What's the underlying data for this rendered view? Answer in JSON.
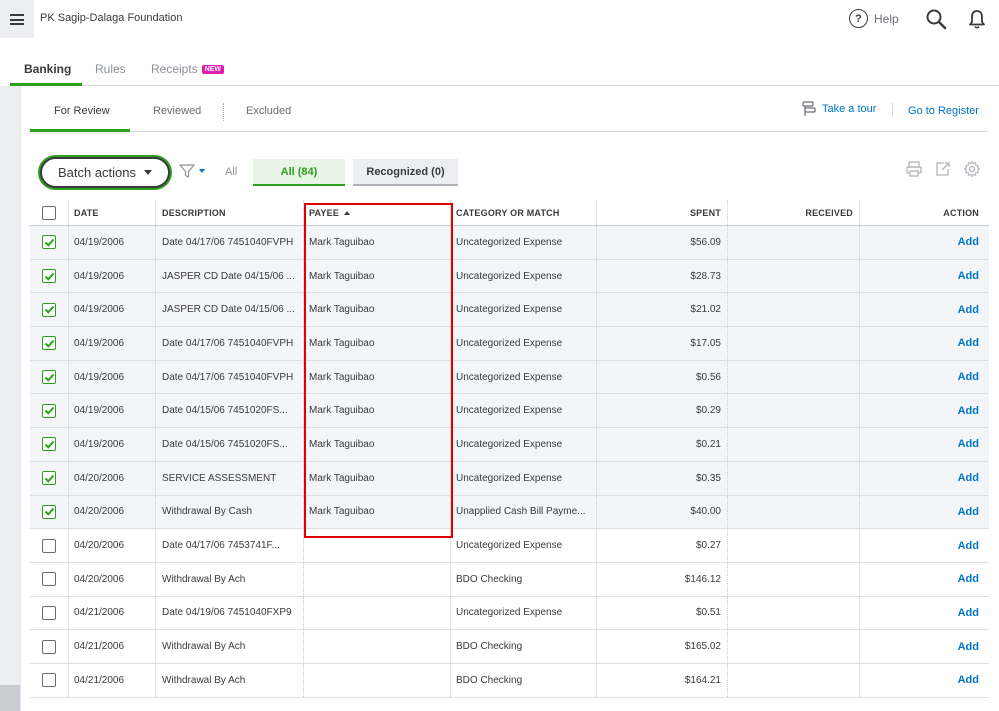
{
  "header": {
    "company": "PK Sagip-Dalaga Foundation",
    "help_label": "Help"
  },
  "main_tabs": [
    {
      "label": "Banking",
      "active": true
    },
    {
      "label": "Rules",
      "active": false
    },
    {
      "label": "Receipts",
      "active": false,
      "badge": "NEW"
    }
  ],
  "sub_tabs": [
    {
      "label": "For Review",
      "active": true
    },
    {
      "label": "Reviewed",
      "active": false
    },
    {
      "label": "Excluded",
      "active": false
    }
  ],
  "links": {
    "tour": "Take a tour",
    "register": "Go to Register"
  },
  "toolbar": {
    "batch_actions": "Batch actions",
    "filter_label": "All",
    "all_pill": "All (84)",
    "recognized_pill": "Recognized (0)"
  },
  "table": {
    "columns": {
      "date": "DATE",
      "description": "DESCRIPTION",
      "payee": "PAYEE",
      "category": "CATEGORY OR MATCH",
      "spent": "SPENT",
      "received": "RECEIVED",
      "action": "ACTION"
    },
    "action_label": "Add",
    "rows": [
      {
        "checked": true,
        "date": "04/19/2006",
        "description": "Date 04/17/06 7451040FVPH",
        "payee": "Mark Taguibao",
        "category": "Uncategorized Expense",
        "spent": "$56.09",
        "received": ""
      },
      {
        "checked": true,
        "date": "04/19/2006",
        "description": "JASPER CD Date 04/15/06 ...",
        "payee": "Mark Taguibao",
        "category": "Uncategorized Expense",
        "spent": "$28.73",
        "received": ""
      },
      {
        "checked": true,
        "date": "04/19/2006",
        "description": "JASPER CD Date 04/15/06 ...",
        "payee": "Mark Taguibao",
        "category": "Uncategorized Expense",
        "spent": "$21.02",
        "received": ""
      },
      {
        "checked": true,
        "date": "04/19/2006",
        "description": "Date 04/17/06 7451040FVPH",
        "payee": "Mark Taguibao",
        "category": "Uncategorized Expense",
        "spent": "$17.05",
        "received": ""
      },
      {
        "checked": true,
        "date": "04/19/2006",
        "description": "Date 04/17/06 7451040FVPH",
        "payee": "Mark Taguibao",
        "category": "Uncategorized Expense",
        "spent": "$0.56",
        "received": ""
      },
      {
        "checked": true,
        "date": "04/19/2006",
        "description": "Date 04/15/06 7451020FS...",
        "payee": "Mark Taguibao",
        "category": "Uncategorized Expense",
        "spent": "$0.29",
        "received": ""
      },
      {
        "checked": true,
        "date": "04/19/2006",
        "description": "Date 04/15/06 7451020FS...",
        "payee": "Mark Taguibao",
        "category": "Uncategorized Expense",
        "spent": "$0.21",
        "received": ""
      },
      {
        "checked": true,
        "date": "04/20/2006",
        "description": "SERVICE ASSESSMENT",
        "payee": "Mark Taguibao",
        "category": "Uncategorized Expense",
        "spent": "$0.35",
        "received": ""
      },
      {
        "checked": true,
        "date": "04/20/2006",
        "description": "Withdrawal By Cash",
        "payee": "Mark Taguibao",
        "category": "Unapplied Cash Bill Payme...",
        "spent": "$40.00",
        "received": ""
      },
      {
        "checked": false,
        "date": "04/20/2006",
        "description": "Date 04/17/06 7453741F...",
        "payee": "",
        "category": "Uncategorized Expense",
        "spent": "$0.27",
        "received": ""
      },
      {
        "checked": false,
        "date": "04/20/2006",
        "description": "Withdrawal By Ach",
        "payee": "",
        "category": "BDO Checking",
        "spent": "$146.12",
        "received": ""
      },
      {
        "checked": false,
        "date": "04/21/2006",
        "description": "Date 04/19/06 7451040FXP9",
        "payee": "",
        "category": "Uncategorized Expense",
        "spent": "$0.51",
        "received": ""
      },
      {
        "checked": false,
        "date": "04/21/2006",
        "description": "Withdrawal By Ach",
        "payee": "",
        "category": "BDO Checking",
        "spent": "$165.02",
        "received": ""
      },
      {
        "checked": false,
        "date": "04/21/2006",
        "description": "Withdrawal By Ach",
        "payee": "",
        "category": "BDO Checking",
        "spent": "$164.21",
        "received": ""
      }
    ]
  },
  "colors": {
    "accent_green": "#2ca01c",
    "link_blue": "#0077c5",
    "highlight_red": "#e00000",
    "new_badge": "#e31bb1"
  }
}
